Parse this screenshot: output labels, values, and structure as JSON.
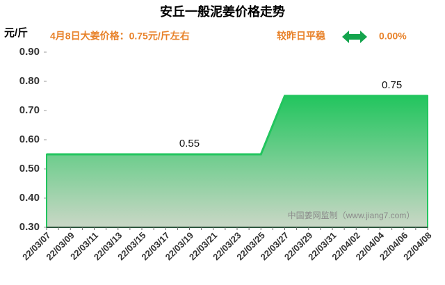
{
  "chart_data": {
    "type": "area",
    "title": "安丘一般泥姜价格走势",
    "y_label": "元/斤",
    "subtitle_left": "4月8日大姜价格：0.75元/斤左右",
    "subtitle_right": "较昨日平稳",
    "change": "0.00%",
    "watermark": "中国姜网监制（www.jiang7.com）",
    "color": "#22c55e",
    "categories": [
      "22/03/07",
      null,
      "22/03/09",
      null,
      "22/03/11",
      null,
      "22/03/13",
      null,
      "22/03/15",
      null,
      "22/03/17",
      null,
      "22/03/19",
      null,
      "22/03/21",
      null,
      "22/03/23",
      null,
      "22/03/25",
      null,
      "22/03/27",
      null,
      "22/03/29",
      null,
      "22/03/31",
      null,
      "22/04/02",
      null,
      "22/04/04",
      null,
      "22/04/06",
      null,
      "22/04/08"
    ],
    "values": [
      0.55,
      0.55,
      0.55,
      0.55,
      0.55,
      0.55,
      0.55,
      0.55,
      0.55,
      0.55,
      0.55,
      0.55,
      0.55,
      0.55,
      0.55,
      0.55,
      0.55,
      0.55,
      0.55,
      0.65,
      0.75,
      0.75,
      0.75,
      0.75,
      0.75,
      0.75,
      0.75,
      0.75,
      0.75,
      0.75,
      0.75,
      0.75,
      0.75
    ],
    "value_labels": [
      null,
      null,
      null,
      null,
      null,
      null,
      null,
      null,
      null,
      null,
      null,
      null,
      "0.55",
      null,
      null,
      null,
      null,
      null,
      null,
      null,
      null,
      null,
      null,
      null,
      null,
      null,
      null,
      null,
      null,
      "0.75",
      null,
      null,
      null
    ],
    "ylim": [
      0.3,
      0.9
    ],
    "yticks": [
      {
        "value": 0.3,
        "label": "0.30"
      },
      {
        "value": 0.4,
        "label": "0.40"
      },
      {
        "value": 0.5,
        "label": "0.50"
      },
      {
        "value": 0.6,
        "label": "0.60"
      },
      {
        "value": 0.7,
        "label": "0.70"
      },
      {
        "value": 0.8,
        "label": "0.80"
      },
      {
        "value": 0.9,
        "label": "0.90"
      }
    ]
  }
}
